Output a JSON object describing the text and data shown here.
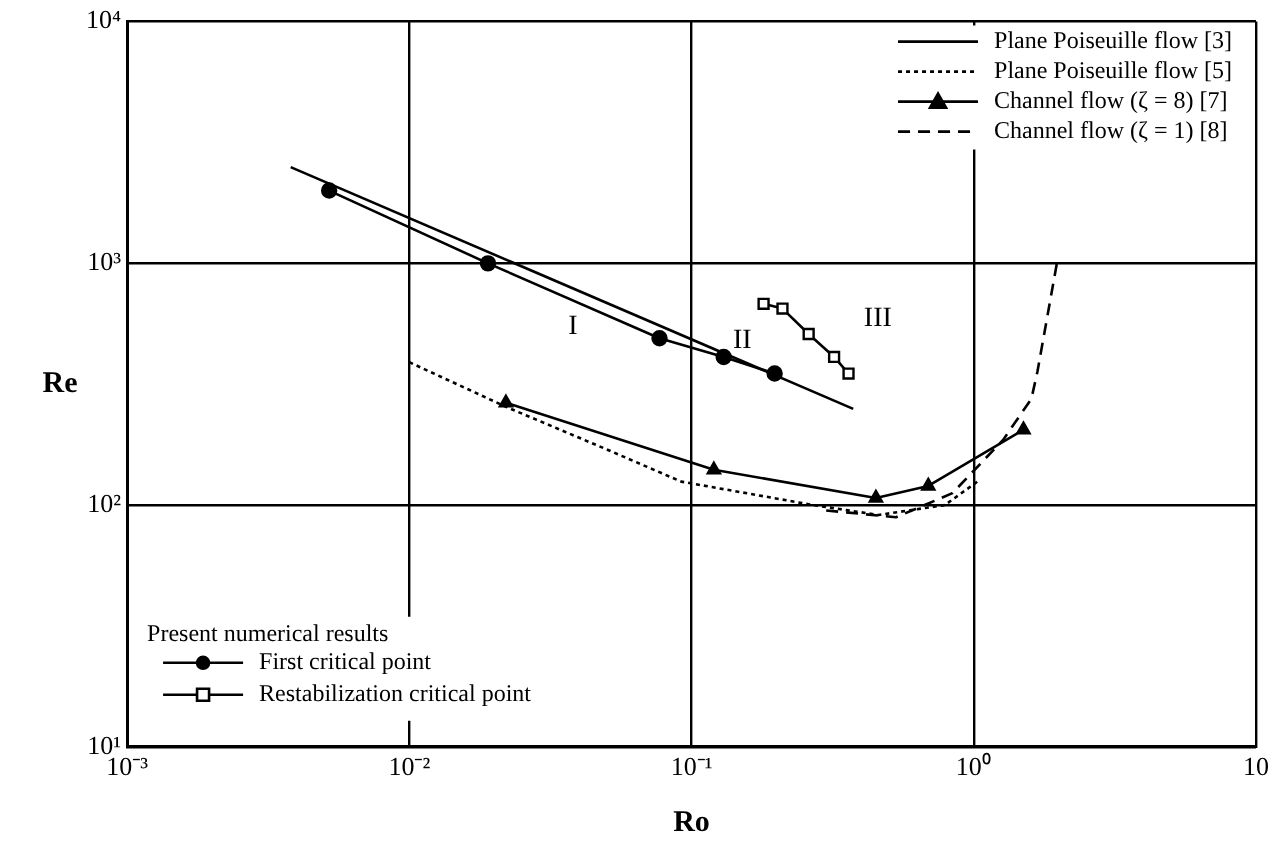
{
  "chart_data": {
    "type": "line",
    "xlabel": "Ro",
    "ylabel": "Re",
    "log": "xy",
    "xlim": [
      0.001,
      10
    ],
    "ylim": [
      10,
      10000
    ],
    "xticks": [
      {
        "value": 0.001,
        "label": "10⁻³"
      },
      {
        "value": 0.01,
        "label": "10⁻²"
      },
      {
        "value": 0.1,
        "label": "10⁻¹"
      },
      {
        "value": 1,
        "label": "10⁰"
      },
      {
        "value": 10,
        "label": "10"
      }
    ],
    "yticks": [
      {
        "value": 10,
        "label": "10¹"
      },
      {
        "value": 100,
        "label": "10²"
      },
      {
        "value": 1000,
        "label": "10³"
      },
      {
        "value": 10000,
        "label": "10⁴"
      }
    ],
    "grid": true,
    "legend": "top right",
    "legend_title": "Present numerical results",
    "annotations": [
      "I",
      "II",
      "III"
    ],
    "series": [
      {
        "name": "Plane Poiseuille flow [3]",
        "color": "#000000",
        "line_style": "solid",
        "marker": "none",
        "x": [
          0.0038,
          0.374
        ],
        "values": [
          2500,
          250
        ]
      },
      {
        "name": "Plane Poiseuille flow [5]",
        "color": "#000000",
        "line_style": "dotted",
        "marker": "none",
        "x": [
          0.01,
          0.022,
          0.05,
          0.092,
          0.27,
          0.46,
          0.79,
          1.03
        ],
        "values": [
          390,
          255,
          170,
          125,
          100,
          91,
          100,
          125
        ]
      },
      {
        "name": "Channel flow (ζ = 8) [7]",
        "color": "#000000",
        "line_style": "solid",
        "marker": "triangle",
        "x": [
          0.022,
          0.12,
          0.45,
          0.69,
          1.5
        ],
        "values": [
          265,
          140,
          107,
          120,
          205
        ]
      },
      {
        "name": "Channel flow (ζ = 1) [8]",
        "color": "#000000",
        "line_style": "dashed",
        "marker": "none",
        "x": [
          0.3,
          0.53,
          0.84,
          1.27,
          1.6,
          1.68,
          1.97
        ],
        "values": [
          95,
          89,
          112,
          186,
          275,
          355,
          1000
        ]
      },
      {
        "name": "First critical point",
        "color": "#000000",
        "line_style": "solid",
        "marker": "circle",
        "x": [
          0.0052,
          0.019,
          0.077,
          0.13,
          0.197
        ],
        "values": [
          2000,
          1000,
          490,
          410,
          350
        ]
      },
      {
        "name": "Restabilization critical point",
        "color": "#000000",
        "line_style": "solid",
        "marker": "square",
        "x": [
          0.18,
          0.21,
          0.26,
          0.32,
          0.36
        ],
        "values": [
          680,
          650,
          510,
          410,
          350
        ]
      }
    ]
  }
}
